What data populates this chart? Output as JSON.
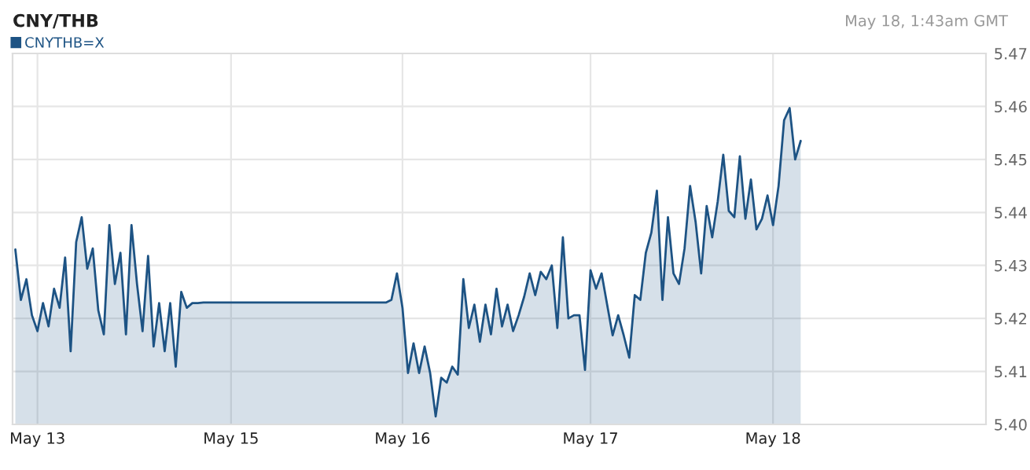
{
  "chart_data": {
    "type": "area",
    "title": "CNY/THB",
    "annotations": [
      "May 18, 1:43am GMT"
    ],
    "categories": [
      null,
      null,
      null,
      null,
      "May 13",
      null,
      null,
      null,
      null,
      null,
      null,
      null,
      null,
      null,
      null,
      null,
      null,
      null,
      null,
      null,
      null,
      null,
      null,
      null,
      null,
      null,
      null,
      null,
      null,
      null,
      null,
      null,
      null,
      null,
      null,
      null,
      null,
      null,
      null,
      "May 15",
      null,
      null,
      null,
      null,
      null,
      null,
      null,
      null,
      null,
      null,
      null,
      null,
      null,
      null,
      null,
      null,
      null,
      null,
      null,
      null,
      null,
      null,
      null,
      null,
      null,
      null,
      null,
      null,
      null,
      null,
      "May 16",
      null,
      null,
      null,
      null,
      null,
      null,
      null,
      null,
      null,
      null,
      null,
      null,
      null,
      null,
      null,
      null,
      null,
      null,
      null,
      null,
      null,
      null,
      null,
      null,
      null,
      null,
      null,
      null,
      null,
      null,
      null,
      null,
      null,
      "May 17",
      null,
      null,
      null,
      null,
      null,
      null,
      null,
      null,
      null,
      null,
      null,
      null,
      null,
      null,
      null,
      null,
      null,
      null,
      null,
      null,
      null,
      null,
      null,
      null,
      null,
      null,
      null,
      null,
      null,
      null,
      null,
      null,
      "May 18",
      null,
      null,
      null,
      null,
      null,
      null,
      null,
      null,
      null,
      null,
      null,
      null,
      null,
      null,
      null,
      null,
      null,
      null,
      null,
      null,
      null,
      null,
      null,
      null,
      null,
      null,
      null,
      null,
      null,
      null,
      null,
      null,
      null,
      null,
      null,
      null,
      null,
      null
    ],
    "ylim": [
      5.4,
      5.47
    ],
    "yticks": [
      {
        "value": 5.4,
        "label": "5.40"
      },
      5.41,
      5.42,
      5.43,
      5.44,
      5.45,
      5.46,
      5.47
    ],
    "grid": true,
    "legend": "top left",
    "marker": "none",
    "line_style": "solid",
    "series": [
      {
        "name": "CNYTHB=X",
        "color": "#1d5384",
        "values": [
          5.433,
          5.4235,
          5.4274,
          5.4206,
          5.4176,
          5.4229,
          5.4185,
          5.4256,
          5.422,
          5.4315,
          5.4138,
          5.4344,
          5.4391,
          5.4294,
          5.4332,
          5.4215,
          5.417,
          5.4376,
          5.4265,
          5.4324,
          5.417,
          5.4376,
          5.4265,
          5.4176,
          5.4318,
          5.4147,
          5.4229,
          5.4138,
          5.4229,
          5.4109,
          5.425,
          5.422,
          5.4229,
          5.4229,
          5.423,
          5.423,
          5.423,
          5.423,
          5.423,
          5.423,
          5.423,
          5.423,
          5.423,
          5.423,
          5.423,
          5.423,
          5.423,
          5.423,
          5.423,
          5.423,
          5.423,
          5.423,
          5.423,
          5.423,
          5.423,
          5.423,
          5.423,
          5.423,
          5.423,
          5.423,
          5.423,
          5.423,
          5.423,
          5.423,
          5.423,
          5.423,
          5.423,
          5.423,
          5.4235,
          5.4285,
          5.422,
          5.4097,
          5.4153,
          5.4097,
          5.4147,
          5.4097,
          5.4015,
          5.4088,
          5.4079,
          5.4109,
          5.4094,
          5.4274,
          5.4182,
          5.4226,
          5.4156,
          5.4226,
          5.417,
          5.4256,
          5.4185,
          5.4226,
          5.4176,
          5.4206,
          5.4241,
          5.4285,
          5.4244,
          5.4288,
          5.4274,
          5.43,
          5.4182,
          5.4353,
          5.42,
          5.4206,
          5.4206,
          5.4103,
          5.4291,
          5.4256,
          5.4285,
          5.4226,
          5.4168,
          5.4206,
          5.4168,
          5.4126,
          5.4244,
          5.4235,
          5.4324,
          5.4362,
          5.4441,
          5.4235,
          5.4391,
          5.4285,
          5.4265,
          5.4332,
          5.445,
          5.4382,
          5.4285,
          5.4412,
          5.4353,
          5.4421,
          5.4509,
          5.4403,
          5.4391,
          5.4506,
          5.4388,
          5.4462,
          5.4368,
          5.4388,
          5.4432,
          5.4376,
          5.445,
          5.4574,
          5.4597,
          5.45,
          5.4535,
          null,
          null,
          null,
          null,
          null,
          null,
          null,
          null,
          null,
          null,
          null,
          null,
          null,
          null,
          null,
          null,
          null,
          null,
          null,
          null,
          null,
          null,
          null,
          null,
          null,
          null,
          null,
          null,
          null,
          null,
          null,
          null,
          null
        ]
      }
    ]
  }
}
